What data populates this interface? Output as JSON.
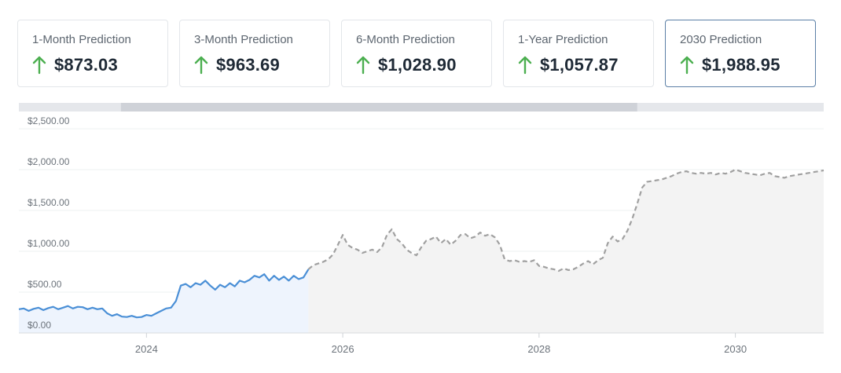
{
  "cards": [
    {
      "label": "1-Month Prediction",
      "value": "$873.03",
      "selected": false
    },
    {
      "label": "3-Month Prediction",
      "value": "$963.69",
      "selected": false
    },
    {
      "label": "6-Month Prediction",
      "value": "$1,028.90",
      "selected": false
    },
    {
      "label": "1-Year Prediction",
      "value": "$1,057.87",
      "selected": false
    },
    {
      "label": "2030 Prediction",
      "value": "$1,988.95",
      "selected": true
    }
  ],
  "colors": {
    "up_arrow": "#4caf50",
    "historical_line": "#4a8fd6",
    "historical_fill": "#eef4fd",
    "prediction_line": "#a0a0a0",
    "prediction_fill": "#f3f3f3",
    "navigator_track": "#e5e7eb",
    "navigator_window": "#cfd2d8"
  },
  "chart_data": {
    "type": "line",
    "title": "",
    "xlabel": "",
    "ylabel": "",
    "ylim": [
      0,
      2500
    ],
    "xlim": [
      2022.7,
      2030.9
    ],
    "y_ticks": [
      "$0.00",
      "$500.00",
      "$1,000.00",
      "$1,500.00",
      "$2,000.00",
      "$2,500.00"
    ],
    "y_tick_values": [
      0,
      500,
      1000,
      1500,
      2000,
      2500
    ],
    "x_ticks": [
      "2024",
      "2026",
      "2028",
      "2030"
    ],
    "x_tick_values": [
      2024,
      2026,
      2028,
      2030
    ],
    "grid": true,
    "legend": "none",
    "navigator": {
      "start": 2023.74,
      "end": 2029.0
    },
    "series": [
      {
        "kind": "historical",
        "x": [
          2022.7,
          2022.75,
          2022.8,
          2022.85,
          2022.9,
          2022.95,
          2023.0,
          2023.05,
          2023.1,
          2023.15,
          2023.2,
          2023.25,
          2023.3,
          2023.35,
          2023.4,
          2023.45,
          2023.5,
          2023.55,
          2023.6,
          2023.65,
          2023.7,
          2023.75,
          2023.8,
          2023.85,
          2023.9,
          2023.95,
          2024.0,
          2024.05,
          2024.1,
          2024.15,
          2024.2,
          2024.25,
          2024.3,
          2024.35,
          2024.4,
          2024.45,
          2024.5,
          2024.55,
          2024.6,
          2024.65,
          2024.7,
          2024.75,
          2024.8,
          2024.85,
          2024.9,
          2024.95,
          2025.0,
          2025.05,
          2025.1,
          2025.15,
          2025.2,
          2025.25,
          2025.3,
          2025.35,
          2025.4,
          2025.45,
          2025.5,
          2025.55,
          2025.6,
          2025.65
        ],
        "values": [
          290,
          300,
          270,
          295,
          310,
          280,
          305,
          320,
          290,
          310,
          330,
          300,
          320,
          315,
          290,
          310,
          290,
          300,
          240,
          210,
          230,
          200,
          195,
          210,
          190,
          195,
          220,
          210,
          240,
          270,
          300,
          310,
          390,
          580,
          600,
          560,
          610,
          590,
          640,
          580,
          530,
          590,
          560,
          610,
          570,
          640,
          620,
          650,
          700,
          680,
          720,
          640,
          700,
          650,
          690,
          640,
          700,
          660,
          680,
          780
        ]
      },
      {
        "kind": "prediction",
        "x": [
          2025.65,
          2025.7,
          2025.75,
          2025.8,
          2025.85,
          2025.9,
          2025.95,
          2026.0,
          2026.05,
          2026.1,
          2026.15,
          2026.2,
          2026.25,
          2026.3,
          2026.35,
          2026.4,
          2026.45,
          2026.5,
          2026.55,
          2026.6,
          2026.65,
          2026.7,
          2026.75,
          2026.8,
          2026.85,
          2026.9,
          2026.95,
          2027.0,
          2027.05,
          2027.1,
          2027.15,
          2027.2,
          2027.25,
          2027.3,
          2027.35,
          2027.4,
          2027.45,
          2027.5,
          2027.55,
          2027.6,
          2027.65,
          2027.7,
          2027.75,
          2027.8,
          2027.85,
          2027.9,
          2027.95,
          2028.0,
          2028.05,
          2028.1,
          2028.15,
          2028.2,
          2028.25,
          2028.3,
          2028.35,
          2028.4,
          2028.45,
          2028.5,
          2028.55,
          2028.6,
          2028.65,
          2028.7,
          2028.75,
          2028.8,
          2028.85,
          2028.9,
          2028.95,
          2029.0,
          2029.05,
          2029.1,
          2029.15,
          2029.2,
          2029.25,
          2029.3,
          2029.35,
          2029.4,
          2029.45,
          2029.5,
          2029.55,
          2029.6,
          2029.65,
          2029.7,
          2029.75,
          2029.8,
          2029.85,
          2029.9,
          2029.95,
          2030.0,
          2030.05,
          2030.1,
          2030.15,
          2030.2,
          2030.25,
          2030.3,
          2030.35,
          2030.4,
          2030.45,
          2030.5,
          2030.55,
          2030.6,
          2030.65,
          2030.7,
          2030.75,
          2030.8,
          2030.85,
          2030.9
        ],
        "values": [
          780,
          830,
          850,
          870,
          900,
          960,
          1080,
          1200,
          1080,
          1040,
          1020,
          980,
          1000,
          1020,
          990,
          1050,
          1200,
          1270,
          1150,
          1100,
          1020,
          980,
          950,
          1050,
          1130,
          1150,
          1180,
          1100,
          1150,
          1080,
          1130,
          1200,
          1210,
          1160,
          1180,
          1230,
          1190,
          1210,
          1170,
          1080,
          900,
          880,
          890,
          870,
          880,
          870,
          890,
          820,
          810,
          790,
          780,
          760,
          790,
          770,
          780,
          810,
          850,
          880,
          840,
          890,
          920,
          1100,
          1180,
          1120,
          1150,
          1250,
          1400,
          1580,
          1780,
          1850,
          1860,
          1870,
          1880,
          1900,
          1920,
          1950,
          1970,
          1980,
          1960,
          1950,
          1960,
          1950,
          1960,
          1940,
          1960,
          1950,
          1970,
          2000,
          1980,
          1960,
          1950,
          1940,
          1930,
          1950,
          1960,
          1920,
          1910,
          1900,
          1920,
          1930,
          1940,
          1950,
          1960,
          1970,
          1980,
          1990
        ]
      }
    ]
  }
}
